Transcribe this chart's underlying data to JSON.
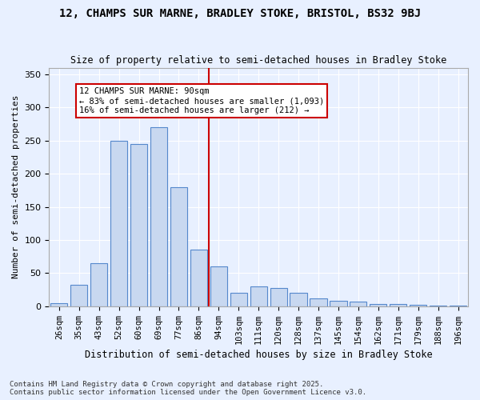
{
  "title": "12, CHAMPS SUR MARNE, BRADLEY STOKE, BRISTOL, BS32 9BJ",
  "subtitle": "Size of property relative to semi-detached houses in Bradley Stoke",
  "xlabel": "Distribution of semi-detached houses by size in Bradley Stoke",
  "ylabel": "Number of semi-detached properties",
  "categories": [
    "26sqm",
    "35sqm",
    "43sqm",
    "52sqm",
    "60sqm",
    "69sqm",
    "77sqm",
    "86sqm",
    "94sqm",
    "103sqm",
    "111sqm",
    "120sqm",
    "128sqm",
    "137sqm",
    "145sqm",
    "154sqm",
    "162sqm",
    "171sqm",
    "179sqm",
    "188sqm",
    "196sqm"
  ],
  "values": [
    5,
    32,
    65,
    250,
    245,
    270,
    180,
    85,
    60,
    20,
    30,
    28,
    20,
    12,
    8,
    7,
    4,
    3,
    2,
    1,
    1
  ],
  "bar_color": "#c8d8f0",
  "bar_edge_color": "#5588cc",
  "vline_x": 7,
  "vline_color": "#cc0000",
  "annotation_text": "12 CHAMPS SUR MARNE: 90sqm\n← 83% of semi-detached houses are smaller (1,093)\n16% of semi-detached houses are larger (212) →",
  "annotation_box_color": "#ffffff",
  "annotation_box_edge": "#cc0000",
  "footer": "Contains HM Land Registry data © Crown copyright and database right 2025.\nContains public sector information licensed under the Open Government Licence v3.0.",
  "bg_color": "#e8f0ff",
  "ylim": [
    0,
    360
  ],
  "yticks": [
    0,
    50,
    100,
    150,
    200,
    250,
    300,
    350
  ]
}
